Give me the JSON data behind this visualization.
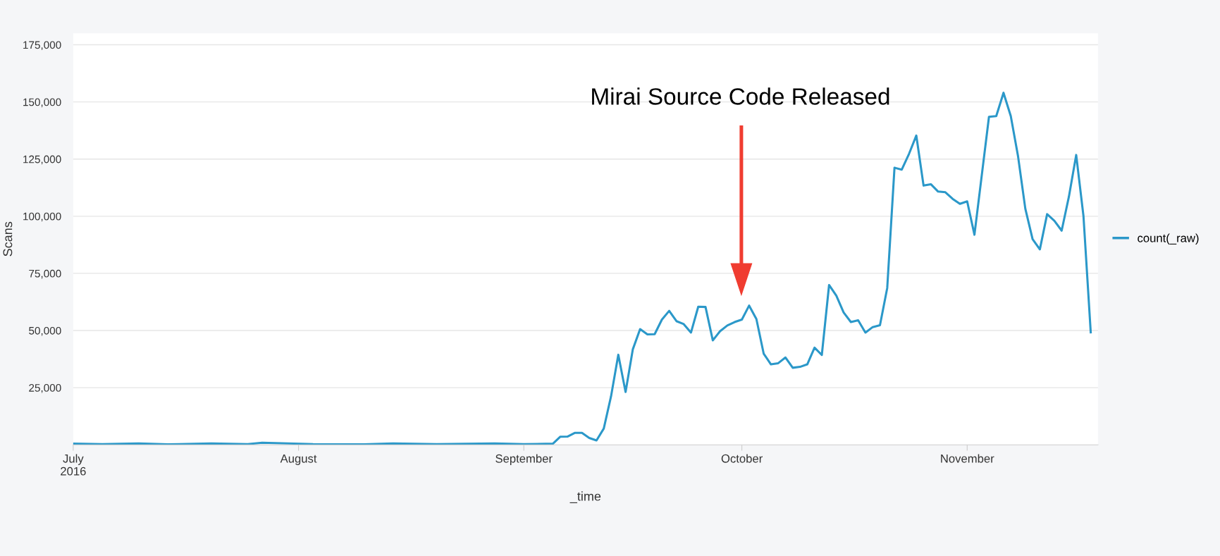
{
  "chart_data": {
    "type": "line",
    "xlabel": "_time",
    "ylabel": "Scans",
    "x": [
      "2016-07-01",
      "2016-07-05",
      "2016-07-10",
      "2016-07-14",
      "2016-07-20",
      "2016-07-25",
      "2016-07-27",
      "2016-08-03",
      "2016-08-10",
      "2016-08-14",
      "2016-08-20",
      "2016-08-28",
      "2016-09-01",
      "2016-09-04",
      "2016-09-05",
      "2016-09-06",
      "2016-09-07",
      "2016-09-08",
      "2016-09-09",
      "2016-09-10",
      "2016-09-11",
      "2016-09-12",
      "2016-09-13",
      "2016-09-14",
      "2016-09-15",
      "2016-09-16",
      "2016-09-17",
      "2016-09-18",
      "2016-09-19",
      "2016-09-20",
      "2016-09-21",
      "2016-09-22",
      "2016-09-23",
      "2016-09-24",
      "2016-09-25",
      "2016-09-26",
      "2016-09-27",
      "2016-09-28",
      "2016-09-29",
      "2016-09-30",
      "2016-10-01",
      "2016-10-02",
      "2016-10-03",
      "2016-10-04",
      "2016-10-05",
      "2016-10-06",
      "2016-10-07",
      "2016-10-08",
      "2016-10-09",
      "2016-10-10",
      "2016-10-11",
      "2016-10-12",
      "2016-10-13",
      "2016-10-14",
      "2016-10-15",
      "2016-10-16",
      "2016-10-17",
      "2016-10-18",
      "2016-10-19",
      "2016-10-20",
      "2016-10-21",
      "2016-10-22",
      "2016-10-23",
      "2016-10-24",
      "2016-10-25",
      "2016-10-26",
      "2016-10-27",
      "2016-10-28",
      "2016-10-29",
      "2016-10-30",
      "2016-10-31",
      "2016-11-01",
      "2016-11-02",
      "2016-11-03",
      "2016-11-04",
      "2016-11-05",
      "2016-11-06",
      "2016-11-07",
      "2016-11-08",
      "2016-11-09",
      "2016-11-10",
      "2016-11-11",
      "2016-11-12",
      "2016-11-13",
      "2016-11-14",
      "2016-11-15",
      "2016-11-16",
      "2016-11-17",
      "2016-11-18"
    ],
    "series": [
      {
        "name": "count(_raw)",
        "color": "#2b98c9",
        "values": [
          500,
          300,
          600,
          200,
          600,
          300,
          900,
          300,
          200,
          600,
          300,
          600,
          300,
          400,
          500,
          3500,
          3600,
          5200,
          5200,
          3000,
          1900,
          7100,
          21200,
          39400,
          23100,
          41800,
          50600,
          48300,
          48400,
          54800,
          58600,
          54100,
          52800,
          49100,
          60400,
          60300,
          45700,
          49700,
          52200,
          53700,
          54800,
          60900,
          55000,
          39900,
          35200,
          35700,
          38200,
          33700,
          34100,
          35200,
          42500,
          39300,
          69900,
          65200,
          57900,
          53700,
          54500,
          49100,
          51500,
          52300,
          68600,
          121200,
          120400,
          127300,
          135300,
          113400,
          114000,
          110800,
          110500,
          107600,
          105400,
          106500,
          91900,
          117700,
          143500,
          143800,
          154000,
          143800,
          126200,
          103300,
          90000,
          85500,
          100900,
          98000,
          93700,
          108600,
          126800,
          100100,
          49200
        ]
      }
    ],
    "xlim": [
      "2016-07-01",
      "2016-11-19"
    ],
    "xticks": [
      {
        "value": "2016-07-01",
        "label": "July\n2016"
      },
      {
        "value": "2016-08-01",
        "label": "August"
      },
      {
        "value": "2016-09-01",
        "label": "September"
      },
      {
        "value": "2016-10-01",
        "label": "October"
      },
      {
        "value": "2016-11-01",
        "label": "November"
      }
    ],
    "ylim": [
      0,
      180000
    ],
    "yticks": [
      {
        "value": 25000,
        "label": "25,000"
      },
      {
        "value": 50000,
        "label": "50,000"
      },
      {
        "value": 75000,
        "label": "75,000"
      },
      {
        "value": 100000,
        "label": "100,000"
      },
      {
        "value": 125000,
        "label": "125,000"
      },
      {
        "value": 150000,
        "label": "150,000"
      },
      {
        "value": 175000,
        "label": "175,000"
      }
    ],
    "grid": "y",
    "legend": "right",
    "marker": "none",
    "line_style": "solid",
    "annotations": [
      "Mirai Source Code Released"
    ]
  }
}
